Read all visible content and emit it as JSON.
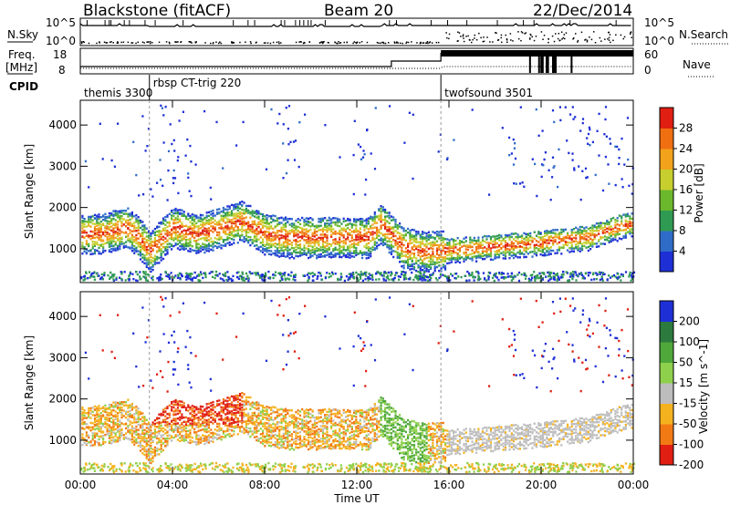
{
  "header": {
    "title": "Blackstone (fitACF)",
    "beam": "Beam 20",
    "date": "22/Dec/2014"
  },
  "summary": {
    "nsky_label": "N.Sky",
    "nsky_ticks": [
      "10^5",
      "10^0"
    ],
    "nsearch_label": "N.Search",
    "nsearch_ticks": [
      "10^5",
      "10^0"
    ],
    "freq_label_1": "Freq.",
    "freq_label_2": "[MHz]",
    "freq_ticks": [
      "18",
      "8"
    ],
    "nave_label": "Nave",
    "nave_ticks": [
      "60",
      "0"
    ],
    "cpid_label": "CPID",
    "cpid_entries": [
      {
        "name": "themis 3300",
        "start_hour": 0.0
      },
      {
        "name": "rbsp CT-trig 220",
        "start_hour": 3.0
      },
      {
        "name": "twofsound 3501",
        "start_hour": 15.65
      }
    ]
  },
  "chart_data": [
    {
      "type": "heatmap",
      "title": "",
      "xlabel": "Time UT",
      "ylabel": "Slant Range [km]",
      "x_ticks": [
        "00:00",
        "04:00",
        "08:00",
        "12:00",
        "16:00",
        "20:00",
        "00:00"
      ],
      "xlim_hours": [
        0,
        24
      ],
      "y_ticks": [
        "1000",
        "2000",
        "3000",
        "4000"
      ],
      "ylim_km": [
        180,
        4600
      ],
      "colorbar": {
        "label": "Power [dB]",
        "ticks": [
          "4",
          "8",
          "12",
          "16",
          "20",
          "24",
          "28"
        ],
        "range": [
          0,
          32
        ],
        "colors": [
          "#1e2fd6",
          "#2f6cc8",
          "#2f9a52",
          "#6cb82c",
          "#c7cf2e",
          "#f2a21b",
          "#f06f10",
          "#e01f12"
        ]
      },
      "band_center_km": [
        [
          0.0,
          1380
        ],
        [
          1.0,
          1400
        ],
        [
          2.0,
          1550
        ],
        [
          2.5,
          1320
        ],
        [
          3.0,
          950
        ],
        [
          4.0,
          1550
        ],
        [
          5.0,
          1380
        ],
        [
          6.0,
          1520
        ],
        [
          7.0,
          1700
        ],
        [
          8.0,
          1380
        ],
        [
          9.0,
          1300
        ],
        [
          10.0,
          1300
        ],
        [
          11.0,
          1300
        ],
        [
          12.0,
          1300
        ],
        [
          12.5,
          1300
        ],
        [
          13.0,
          1650
        ],
        [
          14.0,
          1050
        ],
        [
          15.0,
          950
        ],
        [
          16.0,
          1000
        ],
        [
          18.0,
          1080
        ],
        [
          20.0,
          1180
        ],
        [
          22.0,
          1300
        ],
        [
          23.0,
          1500
        ],
        [
          24.0,
          1650
        ]
      ]
    },
    {
      "type": "heatmap",
      "title": "",
      "xlabel": "Time UT",
      "ylabel": "Slant Range [km]",
      "x_ticks": [
        "00:00",
        "04:00",
        "08:00",
        "12:00",
        "16:00",
        "20:00",
        "00:00"
      ],
      "xlim_hours": [
        0,
        24
      ],
      "y_ticks": [
        "1000",
        "2000",
        "3000",
        "4000"
      ],
      "ylim_km": [
        180,
        4600
      ],
      "colorbar": {
        "label": "Velocity [m s^-1]",
        "ticks": [
          "200",
          "100",
          "50",
          "15",
          "-15",
          "-50",
          "-100",
          "-200"
        ],
        "colors": [
          "#1e2fd6",
          "#2d7a3e",
          "#4ea83a",
          "#8ed04b",
          "#bdbdbd",
          "#f5b21f",
          "#f27a14",
          "#e01f12"
        ]
      }
    }
  ]
}
